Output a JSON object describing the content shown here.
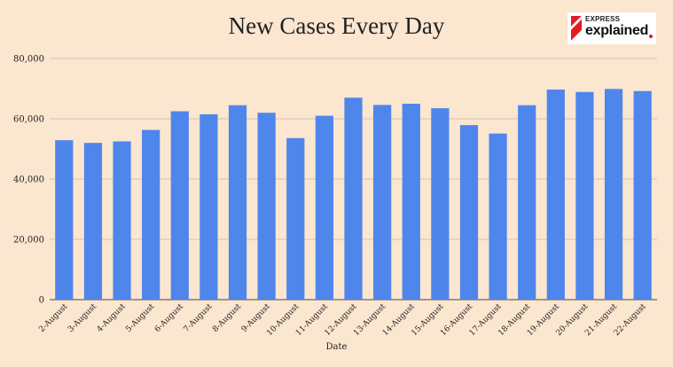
{
  "title": "New Cases Every Day",
  "logo": {
    "top": "EXPRESS",
    "bottom": "explained"
  },
  "colors": {
    "background": "#fbe6d0",
    "bar": "#4f86ec",
    "grid": "#c9b6a3"
  },
  "chart_data": {
    "type": "bar",
    "title": "New Cases Every Day",
    "xlabel": "Date",
    "ylabel": "",
    "ylim": [
      0,
      80000
    ],
    "yticks": [
      0,
      20000,
      40000,
      60000,
      80000
    ],
    "ytick_labels": [
      "0",
      "20,000",
      "40,000",
      "60,000",
      "80,000"
    ],
    "grid": true,
    "categories": [
      "2-August",
      "3-August",
      "4-August",
      "5-August",
      "6-August",
      "7-August",
      "8-August",
      "9-August",
      "10-August",
      "11-August",
      "12-August",
      "13-August",
      "14-August",
      "15-August",
      "16-August",
      "17-August",
      "18-August",
      "19-August",
      "20-August",
      "21-August",
      "22-August"
    ],
    "values": [
      52900,
      52000,
      52500,
      56300,
      62500,
      61500,
      64500,
      62000,
      53600,
      61000,
      67000,
      64600,
      65000,
      63500,
      57900,
      55100,
      64500,
      69700,
      68900,
      69900,
      69200
    ]
  }
}
